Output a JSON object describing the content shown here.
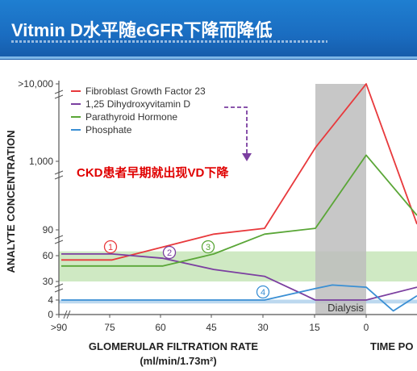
{
  "slide": {
    "title": "Vitmin D水平随eGFR下降而降低"
  },
  "chart_data": {
    "type": "line",
    "xlabel": "GLOMERULAR FILTRATION RATE",
    "xlabel_units": "(ml/min/1.73m²)",
    "xlabel2": "TIME PO",
    "ylabel": "ANALYTE CONCENTRATION",
    "x_ticks": [
      ">90",
      "75",
      "60",
      "45",
      "30",
      "15",
      "0"
    ],
    "x_tick_values": [
      90,
      75,
      60,
      45,
      30,
      15,
      0
    ],
    "y_ticks": [
      "0",
      "4",
      "30",
      "60",
      "90",
      "1,000",
      ">10,000"
    ],
    "dialysis_label": "Dialysis",
    "annotation": "CKD患者早期就出现VD下降",
    "legend_position": "top-left",
    "colors": {
      "fgf23": "#e8393c",
      "vitd": "#7b3fa0",
      "pth": "#5aa637",
      "phosphate": "#3a8fd4",
      "band_green": "#cfe9c3",
      "band_blue": "#bcd8ef",
      "dialysis": "#bdbdbd"
    },
    "series": [
      {
        "key": "fgf23",
        "name": "Fibroblast Growth Factor 23",
        "marker": "1",
        "x": [
          90,
          75,
          60,
          45,
          30,
          15,
          0,
          -15
        ],
        "values": [
          55,
          55,
          70,
          85,
          95,
          1500,
          10000,
          110
        ]
      },
      {
        "key": "vitd",
        "name": "1,25 Dihydroxyvitamin D",
        "marker": "2",
        "x": [
          90,
          75,
          60,
          45,
          30,
          15,
          0,
          -15
        ],
        "values": [
          62,
          62,
          57,
          44,
          36,
          4,
          4,
          22
        ]
      },
      {
        "key": "pth",
        "name": "Parathyroid Hormone",
        "marker": "3",
        "x": [
          90,
          75,
          60,
          45,
          30,
          15,
          0,
          -15
        ],
        "values": [
          48,
          48,
          48,
          62,
          85,
          95,
          1200,
          150
        ]
      },
      {
        "key": "phosphate",
        "name": "Phosphate",
        "marker": "4",
        "x": [
          90,
          75,
          60,
          45,
          30,
          15,
          10,
          0,
          -8,
          -15
        ],
        "values": [
          4,
          4,
          4,
          4,
          4,
          20,
          25,
          22,
          1,
          10
        ]
      }
    ]
  }
}
